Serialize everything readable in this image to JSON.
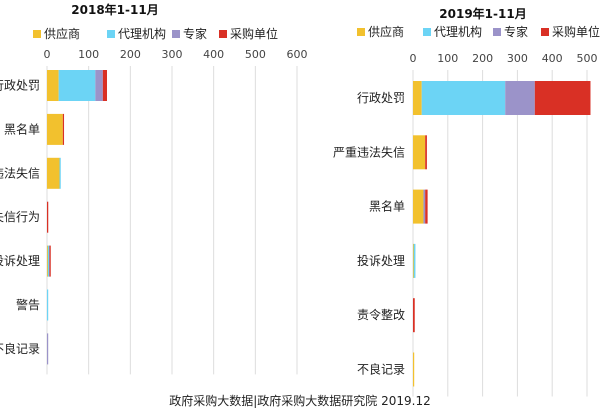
{
  "chart_data": [
    {
      "type": "bar",
      "orientation": "horizontal",
      "stacked": true,
      "title": "2018年1-11月",
      "categories": [
        "行政处罚",
        "黑名单",
        "严重违法失信",
        "失信行为",
        "投诉处理",
        "警告",
        "不良记录"
      ],
      "series": [
        {
          "name": "供应商",
          "color": "#F2C12E",
          "values": [
            28,
            38,
            30,
            0,
            2,
            0,
            0
          ]
        },
        {
          "name": "代理机构",
          "color": "#6CD4F5",
          "values": [
            88,
            0,
            3,
            0,
            3,
            1,
            0
          ]
        },
        {
          "name": "专家",
          "color": "#9B93C9",
          "values": [
            18,
            0,
            0,
            0,
            1,
            0,
            1
          ]
        },
        {
          "name": "采购单位",
          "color": "#D93025",
          "values": [
            10,
            2,
            0,
            3,
            3,
            0,
            0
          ]
        }
      ],
      "xlim": [
        0,
        600
      ],
      "xticks": [
        0,
        100,
        200,
        300,
        400,
        500,
        600
      ],
      "grid": true,
      "legend_position": "top"
    },
    {
      "type": "bar",
      "orientation": "horizontal",
      "stacked": true,
      "title": "2019年1-11月",
      "categories": [
        "行政处罚",
        "严重违法失信",
        "黑名单",
        "投诉处理",
        "责令整改",
        "不良记录"
      ],
      "series": [
        {
          "name": "供应商",
          "color": "#F2C12E",
          "values": [
            25,
            35,
            30,
            2,
            0,
            2
          ]
        },
        {
          "name": "代理机构",
          "color": "#6CD4F5",
          "values": [
            240,
            0,
            0,
            5,
            0,
            0
          ]
        },
        {
          "name": "专家",
          "color": "#9B93C9",
          "values": [
            85,
            0,
            5,
            0,
            0,
            0
          ]
        },
        {
          "name": "采购单位",
          "color": "#D93025",
          "values": [
            160,
            5,
            7,
            0,
            5,
            0
          ]
        }
      ],
      "xlim": [
        0,
        500
      ],
      "xticks": [
        0,
        100,
        200,
        300,
        400,
        500
      ],
      "grid": true,
      "legend_position": "top"
    }
  ],
  "footer": "政府采购大数据|政府采购大数据研究院 2019.12"
}
